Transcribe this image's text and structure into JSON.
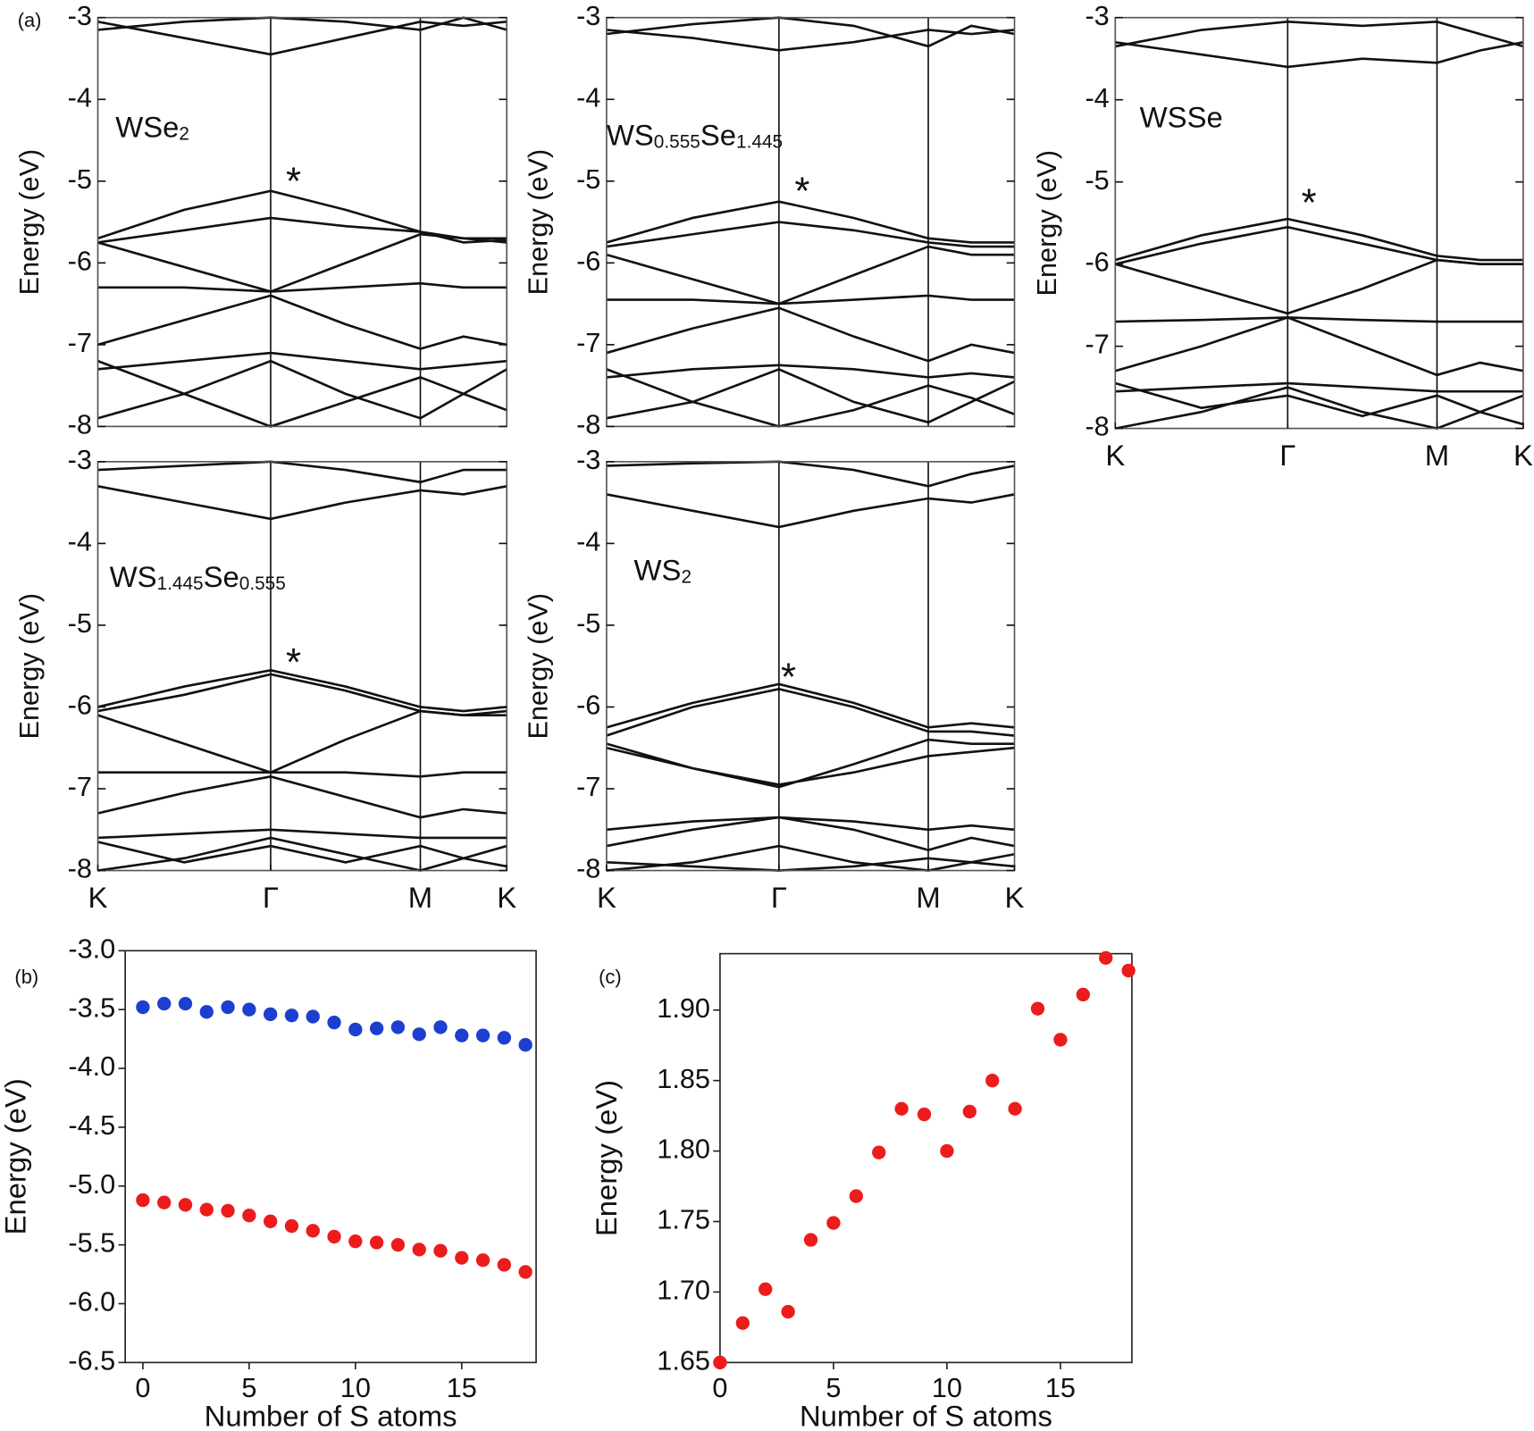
{
  "chart_data": [
    {
      "type": "line",
      "panel": "(a)",
      "label": [
        "WSe",
        "2"
      ],
      "annotation": "*",
      "ylabel": "Energy (eV)",
      "color": "#111111",
      "xlim": [
        0,
        2.366
      ],
      "ylim": [
        -8,
        -3
      ],
      "yticks": [
        -3,
        -4,
        -5,
        -6,
        -7,
        -8
      ],
      "vlines": [
        1,
        1.866
      ],
      "x": [
        0,
        0.5,
        1,
        1.433,
        1.866,
        2.116,
        2.366
      ],
      "series": [
        {
          "values": [
            -3.05,
            -3.25,
            -3.45,
            -3.25,
            -3.05,
            -3.1,
            -3.05
          ]
        },
        {
          "values": [
            -3.15,
            -3.05,
            -3.0,
            -3.05,
            -3.15,
            -3.0,
            -3.15
          ]
        },
        {
          "values": [
            -5.7,
            -5.35,
            -5.12,
            -5.35,
            -5.62,
            -5.7,
            -5.7
          ]
        },
        {
          "values": [
            -5.75,
            -5.6,
            -5.45,
            -5.55,
            -5.62,
            -5.75,
            -5.72
          ]
        },
        {
          "values": [
            -5.75,
            -6.05,
            -6.35,
            -6.0,
            -5.65,
            -5.7,
            -5.75
          ]
        },
        {
          "values": [
            -6.3,
            -6.3,
            -6.35,
            -6.3,
            -6.25,
            -6.3,
            -6.3
          ]
        },
        {
          "values": [
            -7.0,
            -6.7,
            -6.4,
            -6.75,
            -7.05,
            -6.9,
            -7.0
          ]
        },
        {
          "values": [
            -7.3,
            -7.2,
            -7.1,
            -7.2,
            -7.3,
            -7.25,
            -7.2
          ]
        },
        {
          "values": [
            -7.9,
            -7.6,
            -7.2,
            -7.6,
            -7.9,
            -7.6,
            -7.3
          ]
        },
        {
          "values": [
            -7.2,
            -7.6,
            -8.0,
            -7.7,
            -7.4,
            -7.6,
            -7.8
          ]
        }
      ]
    },
    {
      "type": "line",
      "label": [
        "WS",
        "0.555",
        "Se",
        "1.445"
      ],
      "annotation": "*",
      "ylabel": "Energy (eV)",
      "color": "#111111",
      "xlim": [
        0,
        2.366
      ],
      "ylim": [
        -8,
        -3
      ],
      "yticks": [
        -3,
        -4,
        -5,
        -6,
        -7,
        -8
      ],
      "vlines": [
        1,
        1.866
      ],
      "x": [
        0,
        0.5,
        1,
        1.433,
        1.866,
        2.116,
        2.366
      ],
      "series": [
        {
          "values": [
            -3.15,
            -3.25,
            -3.4,
            -3.3,
            -3.15,
            -3.2,
            -3.15
          ]
        },
        {
          "values": [
            -3.2,
            -3.08,
            -3.0,
            -3.1,
            -3.35,
            -3.1,
            -3.2
          ]
        },
        {
          "values": [
            -5.75,
            -5.45,
            -5.25,
            -5.45,
            -5.7,
            -5.75,
            -5.75
          ]
        },
        {
          "values": [
            -5.8,
            -5.65,
            -5.5,
            -5.6,
            -5.75,
            -5.8,
            -5.8
          ]
        },
        {
          "values": [
            -5.9,
            -6.2,
            -6.5,
            -6.15,
            -5.8,
            -5.9,
            -5.9
          ]
        },
        {
          "values": [
            -6.45,
            -6.45,
            -6.5,
            -6.45,
            -6.4,
            -6.45,
            -6.45
          ]
        },
        {
          "values": [
            -7.1,
            -6.8,
            -6.55,
            -6.9,
            -7.2,
            -7.0,
            -7.1
          ]
        },
        {
          "values": [
            -7.4,
            -7.3,
            -7.25,
            -7.3,
            -7.4,
            -7.35,
            -7.4
          ]
        },
        {
          "values": [
            -7.9,
            -7.7,
            -7.3,
            -7.7,
            -7.95,
            -7.7,
            -7.45
          ]
        },
        {
          "values": [
            -7.3,
            -7.7,
            -8.0,
            -7.8,
            -7.5,
            -7.65,
            -7.85
          ]
        }
      ]
    },
    {
      "type": "line",
      "label": [
        "WSSe"
      ],
      "annotation": "*",
      "ylabel": "Energy (eV)",
      "color": "#111111",
      "xlim": [
        0,
        2.366
      ],
      "ylim": [
        -8,
        -3
      ],
      "yticks": [
        -3,
        -4,
        -5,
        -6,
        -7,
        -8
      ],
      "vlines": [
        1,
        1.866
      ],
      "xticks": [
        {
          "value": 0,
          "label": "K"
        },
        {
          "value": 1,
          "label": "Γ"
        },
        {
          "value": 1.866,
          "label": "M"
        },
        {
          "value": 2.366,
          "label": "K"
        }
      ],
      "x": [
        0,
        0.5,
        1,
        1.433,
        1.866,
        2.116,
        2.366
      ],
      "series": [
        {
          "values": [
            -3.3,
            -3.45,
            -3.6,
            -3.5,
            -3.55,
            -3.4,
            -3.3
          ]
        },
        {
          "values": [
            -3.35,
            -3.15,
            -3.05,
            -3.1,
            -3.05,
            -3.2,
            -3.35
          ]
        },
        {
          "values": [
            -5.95,
            -5.65,
            -5.45,
            -5.65,
            -5.9,
            -5.95,
            -5.95
          ]
        },
        {
          "values": [
            -6.0,
            -5.75,
            -5.55,
            -5.75,
            -5.95,
            -6.0,
            -6.0
          ]
        },
        {
          "values": [
            -6.0,
            -6.3,
            -6.6,
            -6.3,
            -5.95,
            -6.0,
            -6.0
          ]
        },
        {
          "values": [
            -6.7,
            -6.68,
            -6.65,
            -6.68,
            -6.7,
            -6.7,
            -6.7
          ]
        },
        {
          "values": [
            -7.3,
            -7.0,
            -6.65,
            -7.0,
            -7.35,
            -7.2,
            -7.3
          ]
        },
        {
          "values": [
            -7.55,
            -7.5,
            -7.45,
            -7.5,
            -7.55,
            -7.55,
            -7.55
          ]
        },
        {
          "values": [
            -8.0,
            -7.8,
            -7.5,
            -7.8,
            -8.0,
            -7.8,
            -7.6
          ]
        },
        {
          "values": [
            -7.45,
            -7.75,
            -7.6,
            -7.85,
            -7.6,
            -7.8,
            -7.95
          ]
        }
      ]
    },
    {
      "type": "line",
      "label": [
        "WS",
        "1.445",
        "Se",
        "0.555"
      ],
      "annotation": "*",
      "ylabel": "Energy (eV)",
      "color": "#111111",
      "xlim": [
        0,
        2.366
      ],
      "ylim": [
        -8,
        -3
      ],
      "yticks": [
        -3,
        -4,
        -5,
        -6,
        -7,
        -8
      ],
      "vlines": [
        1,
        1.866
      ],
      "xticks": [
        {
          "value": 0,
          "label": "K"
        },
        {
          "value": 1,
          "label": "Γ"
        },
        {
          "value": 1.866,
          "label": "M"
        },
        {
          "value": 2.366,
          "label": "K"
        }
      ],
      "x": [
        0,
        0.5,
        1,
        1.433,
        1.866,
        2.116,
        2.366
      ],
      "series": [
        {
          "values": [
            -3.3,
            -3.5,
            -3.7,
            -3.5,
            -3.35,
            -3.4,
            -3.3
          ]
        },
        {
          "values": [
            -3.1,
            -3.05,
            -3.0,
            -3.1,
            -3.25,
            -3.1,
            -3.1
          ]
        },
        {
          "values": [
            -6.0,
            -5.75,
            -5.55,
            -5.75,
            -6.0,
            -6.05,
            -6.0
          ]
        },
        {
          "values": [
            -6.05,
            -5.85,
            -5.6,
            -5.8,
            -6.05,
            -6.1,
            -6.05
          ]
        },
        {
          "values": [
            -6.1,
            -6.45,
            -6.8,
            -6.4,
            -6.05,
            -6.1,
            -6.1
          ]
        },
        {
          "values": [
            -6.8,
            -6.8,
            -6.8,
            -6.8,
            -6.85,
            -6.8,
            -6.8
          ]
        },
        {
          "values": [
            -7.3,
            -7.05,
            -6.85,
            -7.1,
            -7.35,
            -7.25,
            -7.3
          ]
        },
        {
          "values": [
            -7.6,
            -7.55,
            -7.5,
            -7.55,
            -7.6,
            -7.6,
            -7.6
          ]
        },
        {
          "values": [
            -8.0,
            -7.85,
            -7.6,
            -7.8,
            -8.0,
            -7.85,
            -7.7
          ]
        },
        {
          "values": [
            -7.65,
            -7.9,
            -7.7,
            -7.9,
            -7.7,
            -7.85,
            -7.95
          ]
        }
      ]
    },
    {
      "type": "line",
      "label": [
        "WS",
        "2"
      ],
      "annotation": "*",
      "ylabel": "Energy (eV)",
      "color": "#111111",
      "xlim": [
        0,
        2.366
      ],
      "ylim": [
        -8,
        -3
      ],
      "yticks": [
        -3,
        -4,
        -5,
        -6,
        -7,
        -8
      ],
      "vlines": [
        1,
        1.866
      ],
      "xticks": [
        {
          "value": 0,
          "label": "K"
        },
        {
          "value": 1,
          "label": "Γ"
        },
        {
          "value": 1.866,
          "label": "M"
        },
        {
          "value": 2.366,
          "label": "K"
        }
      ],
      "x": [
        0,
        0.5,
        1,
        1.433,
        1.866,
        2.116,
        2.366
      ],
      "series": [
        {
          "values": [
            -3.4,
            -3.6,
            -3.8,
            -3.6,
            -3.45,
            -3.5,
            -3.4
          ]
        },
        {
          "values": [
            -3.05,
            -3.02,
            -3.0,
            -3.1,
            -3.3,
            -3.15,
            -3.05
          ]
        },
        {
          "values": [
            -6.25,
            -5.95,
            -5.72,
            -5.95,
            -6.25,
            -6.2,
            -6.25
          ]
        },
        {
          "values": [
            -6.35,
            -6.0,
            -5.78,
            -6.0,
            -6.3,
            -6.3,
            -6.35
          ]
        },
        {
          "values": [
            -6.45,
            -6.75,
            -6.98,
            -6.7,
            -6.4,
            -6.45,
            -6.45
          ]
        },
        {
          "values": [
            -6.5,
            -6.75,
            -6.95,
            -6.8,
            -6.6,
            -6.55,
            -6.5
          ]
        },
        {
          "values": [
            -7.5,
            -7.4,
            -7.35,
            -7.4,
            -7.5,
            -7.45,
            -7.5
          ]
        },
        {
          "values": [
            -7.7,
            -7.5,
            -7.35,
            -7.5,
            -7.75,
            -7.6,
            -7.7
          ]
        },
        {
          "values": [
            -8.0,
            -7.9,
            -7.7,
            -7.9,
            -8.0,
            -7.9,
            -7.8
          ]
        },
        {
          "values": [
            -7.9,
            -7.95,
            -8.0,
            -7.95,
            -7.85,
            -7.9,
            -7.95
          ]
        }
      ]
    },
    {
      "type": "scatter",
      "panel": "(b)",
      "xlabel": "Number of S atoms",
      "ylabel": "Energy (eV)",
      "xlim": [
        -0.83,
        18.5
      ],
      "xticks": [
        0,
        5,
        10,
        15
      ],
      "ylim": [
        -6.5,
        -3.0
      ],
      "yticks": [
        {
          "value": -3,
          "label": "-3.0"
        },
        -3.5,
        {
          "value": -4,
          "label": "-4.0"
        },
        -4.5,
        {
          "value": -5,
          "label": "-5.0"
        },
        -5.5,
        {
          "value": -6,
          "label": "-6.0"
        },
        -6.5
      ],
      "x": [
        0,
        1,
        2,
        3,
        4,
        5,
        6,
        7,
        8,
        9,
        10,
        11,
        12,
        13,
        14,
        15,
        16,
        17,
        18
      ],
      "series": [
        {
          "color": "#1d3fd0",
          "values": [
            -3.48,
            -3.45,
            -3.45,
            -3.52,
            -3.48,
            -3.5,
            -3.54,
            -3.55,
            -3.56,
            -3.61,
            -3.67,
            -3.66,
            -3.65,
            -3.71,
            -3.65,
            -3.72,
            -3.72,
            -3.74,
            -3.8
          ]
        },
        {
          "color": "#ec1c1c",
          "values": [
            -5.12,
            -5.14,
            -5.16,
            -5.2,
            -5.21,
            -5.25,
            -5.3,
            -5.34,
            -5.38,
            -5.43,
            -5.47,
            -5.48,
            -5.5,
            -5.54,
            -5.55,
            -5.61,
            -5.63,
            -5.67,
            -5.73
          ]
        }
      ]
    },
    {
      "type": "scatter",
      "panel": "(c)",
      "xlabel": "Number of S atoms",
      "ylabel": "Energy (eV)",
      "xlim": [
        0,
        18.15
      ],
      "xticks": [
        0,
        5,
        10,
        15
      ],
      "ylim": [
        1.65,
        1.94
      ],
      "yticks": [
        1.65,
        {
          "value": 1.7,
          "label": "1.70"
        },
        1.75,
        {
          "value": 1.8,
          "label": "1.80"
        },
        1.85,
        {
          "value": 1.9,
          "label": "1.90"
        }
      ],
      "x": [
        0,
        1,
        2,
        3,
        4,
        5,
        6,
        7,
        8,
        9,
        10,
        11,
        12,
        13,
        14,
        15,
        16,
        17,
        18
      ],
      "series": [
        {
          "color": "#ec1c1c",
          "values": [
            1.65,
            1.678,
            1.702,
            1.686,
            1.737,
            1.749,
            1.768,
            1.799,
            1.83,
            1.826,
            1.8,
            1.828,
            1.85,
            1.83,
            1.901,
            1.879,
            1.911,
            1.937,
            1.928
          ]
        }
      ]
    }
  ]
}
